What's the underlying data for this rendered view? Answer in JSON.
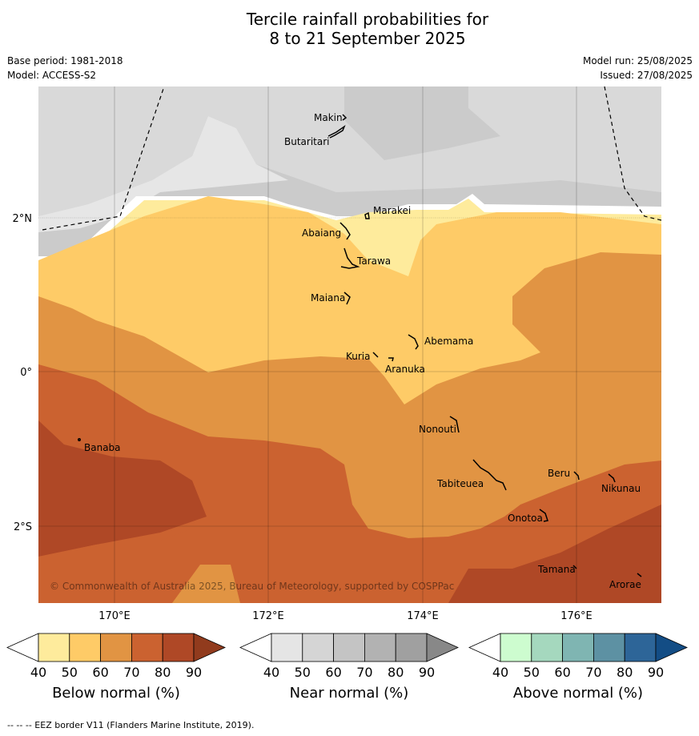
{
  "title": {
    "line1": "Tercile rainfall probabilities for",
    "line2": "8 to 21 September 2025"
  },
  "meta": {
    "base_period": "Base period: 1981-2018",
    "model": "Model: ACCESS-S2",
    "model_run": "Model run: 25/08/2025",
    "issued": "Issued: 27/08/2025"
  },
  "map": {
    "lat_labels": [
      "2°N",
      "0°",
      "2°S"
    ],
    "lon_labels": [
      "170°E",
      "172°E",
      "174°E",
      "176°E"
    ],
    "copyright": "© Commonwealth of Australia 2025, Bureau of Meteorology, supported by COSPPac",
    "places": [
      "Makin",
      "Butaritari",
      "Marakei",
      "Abaiang",
      "Tarawa",
      "Maiana",
      "Abemama",
      "Kuria",
      "Aranuka",
      "Nonouti",
      "Banaba",
      "Tabiteuea",
      "Beru",
      "Nikunau",
      "Onotoa",
      "Tamana",
      "Arorae"
    ]
  },
  "colorbars": [
    {
      "label": "Below normal (%)",
      "ticks": [
        "40",
        "50",
        "60",
        "70",
        "80",
        "90"
      ],
      "colors": [
        "#ffffff",
        "#feeb9c",
        "#fecb67",
        "#e19443",
        "#cb6230",
        "#af4826",
        "#913b1d"
      ]
    },
    {
      "label": "Near normal (%)",
      "ticks": [
        "40",
        "50",
        "60",
        "70",
        "80",
        "90"
      ],
      "colors": [
        "#ffffff",
        "#e5e5e5",
        "#d5d5d5",
        "#c4c4c4",
        "#b2b2b2",
        "#a0a0a0",
        "#888888"
      ]
    },
    {
      "label": "Above normal (%)",
      "ticks": [
        "40",
        "50",
        "60",
        "70",
        "80",
        "90"
      ],
      "colors": [
        "#ffffff",
        "#cdfccf",
        "#a5d8be",
        "#7fb5b2",
        "#5d91a3",
        "#2d6598",
        "#134d85"
      ]
    }
  ],
  "footer": "--  --  -- EEZ border V11 (Flanders Marine Institute, 2019)."
}
